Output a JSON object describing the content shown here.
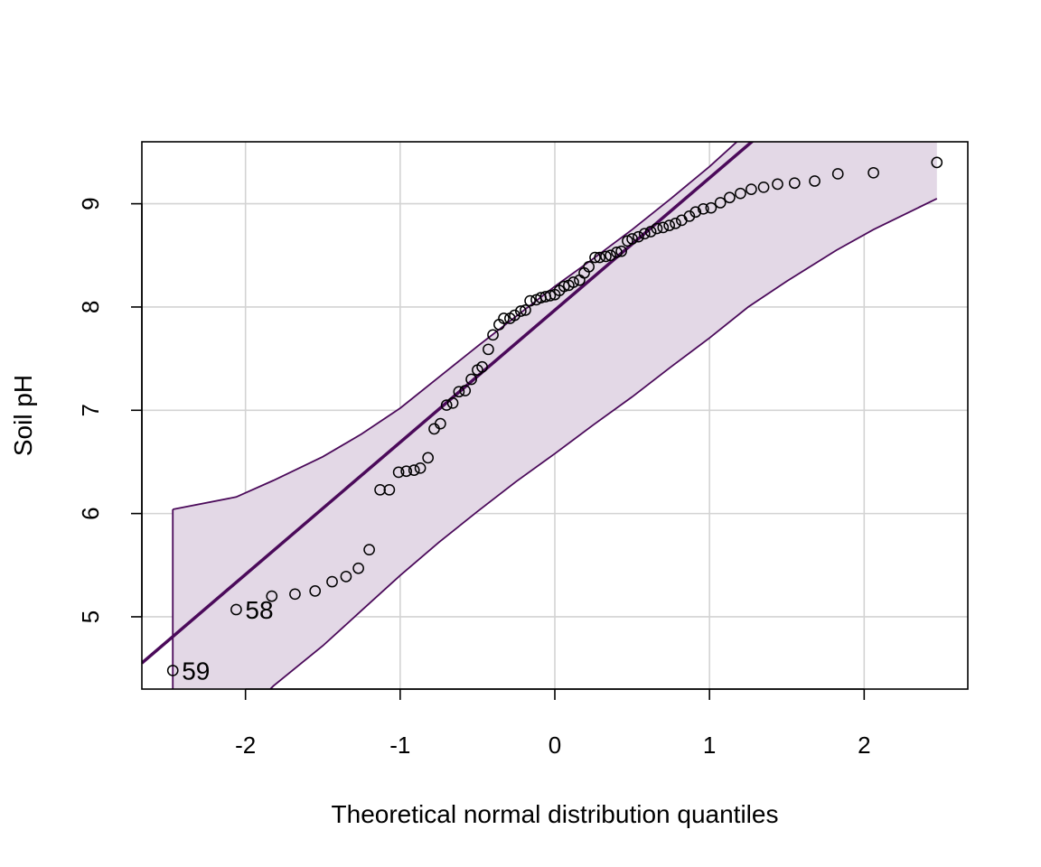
{
  "chart_data": {
    "type": "scatter",
    "title": "",
    "xlabel": "Theoretical normal distribution quantiles",
    "ylabel": "Soil pH",
    "xlim": [
      -2.67,
      2.67
    ],
    "ylim": [
      4.3,
      9.6
    ],
    "xticks": [
      -2,
      -1,
      0,
      1,
      2
    ],
    "yticks": [
      5,
      6,
      7,
      8,
      9
    ],
    "grid": true,
    "colors": {
      "line": "#4b0a5a",
      "band_fill": "#e3d8e6",
      "band_edge": "#4b0a5a",
      "points": "#000000",
      "grid": "#d3d3d3"
    },
    "reference_line": {
      "intercept": 7.97,
      "slope": 1.28
    },
    "confidence_band": {
      "x": [
        -2.47,
        -2.06,
        -1.82,
        -1.5,
        -1.25,
        -1.0,
        -0.75,
        -0.5,
        -0.25,
        0.0,
        0.25,
        0.5,
        0.75,
        1.0,
        1.25,
        1.5,
        1.82,
        2.06,
        2.47
      ],
      "upper": [
        6.04,
        6.16,
        6.32,
        6.55,
        6.77,
        7.02,
        7.32,
        7.62,
        7.91,
        8.2,
        8.47,
        8.75,
        9.05,
        9.36,
        9.7,
        10.05,
        10.6,
        11.0,
        11.7
      ],
      "lower": [
        3.7,
        3.97,
        4.33,
        4.72,
        5.06,
        5.4,
        5.72,
        6.02,
        6.31,
        6.58,
        6.86,
        7.13,
        7.42,
        7.7,
        8.0,
        8.25,
        8.55,
        8.75,
        9.05
      ]
    },
    "points": {
      "x": [
        -2.47,
        -2.06,
        -1.83,
        -1.68,
        -1.55,
        -1.44,
        -1.35,
        -1.27,
        -1.2,
        -1.13,
        -1.07,
        -1.01,
        -0.96,
        -0.91,
        -0.87,
        -0.82,
        -0.78,
        -0.74,
        -0.7,
        -0.66,
        -0.62,
        -0.58,
        -0.54,
        -0.5,
        -0.47,
        -0.43,
        -0.4,
        -0.36,
        -0.33,
        -0.29,
        -0.26,
        -0.22,
        -0.19,
        -0.16,
        -0.12,
        -0.09,
        -0.06,
        -0.03,
        0.0,
        0.03,
        0.06,
        0.09,
        0.12,
        0.16,
        0.19,
        0.22,
        0.26,
        0.29,
        0.33,
        0.36,
        0.4,
        0.43,
        0.47,
        0.5,
        0.54,
        0.58,
        0.62,
        0.66,
        0.7,
        0.74,
        0.78,
        0.82,
        0.87,
        0.91,
        0.96,
        1.01,
        1.07,
        1.13,
        1.2,
        1.27,
        1.35,
        1.44,
        1.55,
        1.68,
        1.83,
        2.06,
        2.47
      ],
      "y": [
        4.48,
        5.07,
        5.2,
        5.22,
        5.25,
        5.34,
        5.39,
        5.47,
        5.65,
        6.23,
        6.23,
        6.4,
        6.41,
        6.42,
        6.44,
        6.54,
        6.82,
        6.87,
        7.05,
        7.07,
        7.18,
        7.19,
        7.3,
        7.39,
        7.42,
        7.59,
        7.73,
        7.83,
        7.89,
        7.89,
        7.92,
        7.96,
        7.97,
        8.06,
        8.07,
        8.09,
        8.1,
        8.11,
        8.12,
        8.16,
        8.2,
        8.21,
        8.24,
        8.26,
        8.33,
        8.39,
        8.48,
        8.48,
        8.49,
        8.5,
        8.53,
        8.54,
        8.64,
        8.66,
        8.68,
        8.71,
        8.73,
        8.76,
        8.77,
        8.79,
        8.81,
        8.84,
        8.88,
        8.92,
        8.95,
        8.96,
        9.01,
        9.06,
        9.1,
        9.14,
        9.16,
        9.19,
        9.2,
        9.22,
        9.29,
        9.3,
        9.4
      ]
    },
    "labeled_points": [
      {
        "label": "59",
        "x": -2.47,
        "y": 4.48
      },
      {
        "label": "58",
        "x": -2.06,
        "y": 5.07
      }
    ]
  }
}
